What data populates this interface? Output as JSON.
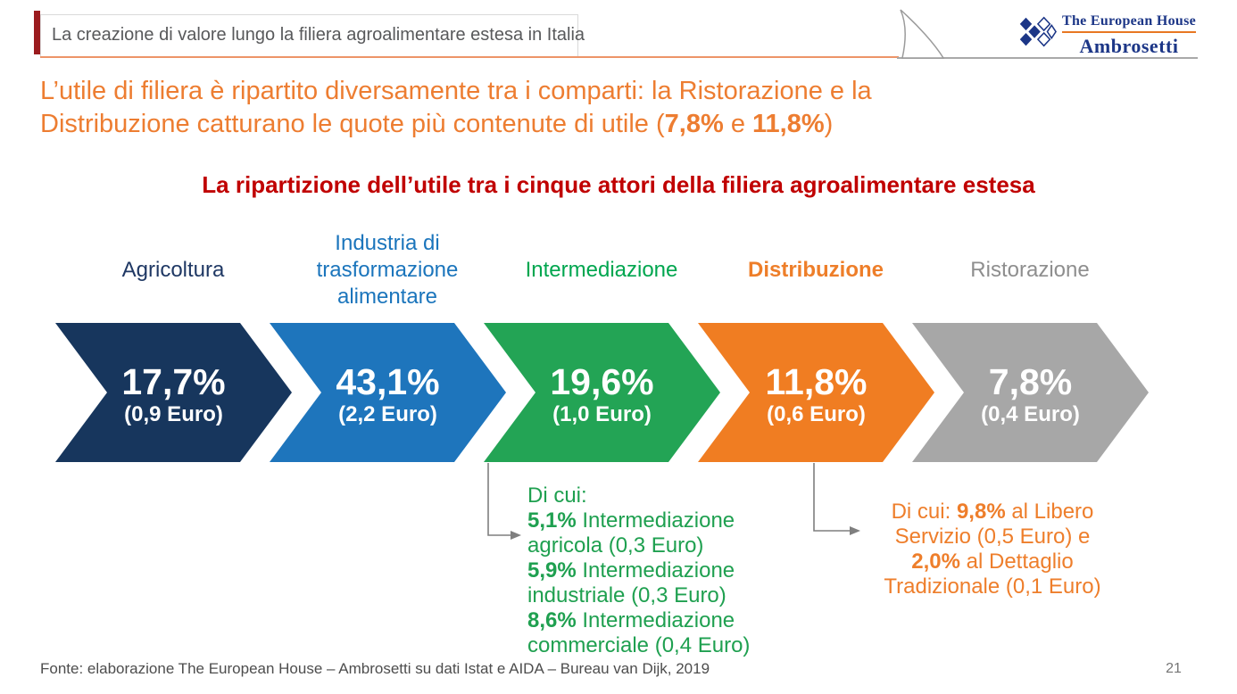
{
  "header": {
    "title": "La creazione di valore lungo la filiera agroalimentare estesa in Italia"
  },
  "logo": {
    "line1": "The European House",
    "line2": "Ambrosetti",
    "navy": "#1C3687",
    "orange": "#E87722"
  },
  "heading": {
    "color": "#ED7D31",
    "lines": [
      [
        {
          "t": "L’utile di filiera è ripartito diversamente tra i comparti: la Ristorazione e la"
        }
      ],
      [
        {
          "t": "Distribuzione catturano le quote più contenute di utile ("
        },
        {
          "t": "7,8%",
          "b": true
        },
        {
          "t": " e "
        },
        {
          "t": "11,8%",
          "b": true
        },
        {
          "t": ")"
        }
      ]
    ]
  },
  "subtitle": {
    "text": "La ripartizione dell’utile tra i cinque attori della filiera agroalimentare estesa",
    "color": "#C00000"
  },
  "arrows": [
    {
      "label": "Agricoltura",
      "label_color": "#1F3864",
      "label_weight": "400",
      "color": "#17365D",
      "pct": "17,7%",
      "euro": "(0,9 Euro)"
    },
    {
      "label": "Industria di trasformazione alimentare",
      "label_color": "#1B75BC",
      "label_weight": "400",
      "color": "#1E75BC",
      "pct": "43,1%",
      "euro": "(2,2 Euro)"
    },
    {
      "label": "Intermediazione",
      "label_color": "#00A64F",
      "label_weight": "400",
      "color": "#23A455",
      "pct": "19,6%",
      "euro": "(1,0 Euro)"
    },
    {
      "label": "Distribuzione",
      "label_color": "#EE7E29",
      "label_weight": "700",
      "color": "#F07D22",
      "pct": "11,8%",
      "euro": "(0,6 Euro)"
    },
    {
      "label": "Ristorazione",
      "label_color": "#8E8E8E",
      "label_weight": "400",
      "color": "#A7A7A7",
      "pct": "7,8%",
      "euro": "(0,4 Euro)"
    }
  ],
  "notes": {
    "green": {
      "color": "#1FA050",
      "lines": [
        [
          {
            "t": "Di cui:"
          }
        ],
        [
          {
            "t": "5,1%",
            "b": true
          },
          {
            "t": " Intermediazione"
          }
        ],
        [
          {
            "t": "agricola (0,3 Euro)"
          }
        ],
        [
          {
            "t": "5,9%",
            "b": true
          },
          {
            "t": " Intermediazione"
          }
        ],
        [
          {
            "t": "industriale (0,3 Euro)"
          }
        ],
        [
          {
            "t": "8,6%",
            "b": true
          },
          {
            "t": " Intermediazione"
          }
        ],
        [
          {
            "t": "commerciale (0,4 Euro)"
          }
        ]
      ]
    },
    "orange": {
      "color": "#EE7E2B",
      "lines": [
        [
          {
            "t": "Di cui: "
          },
          {
            "t": "9,8%",
            "b": true
          },
          {
            "t": " al Libero"
          }
        ],
        [
          {
            "t": "Servizio (0,5 Euro) e"
          }
        ],
        [
          {
            "t": "2,0%",
            "b": true
          },
          {
            "t": " al Dettaglio"
          }
        ],
        [
          {
            "t": "Tradizionale (0,1 Euro)"
          }
        ]
      ]
    }
  },
  "footer": {
    "source": "Fonte: elaborazione The European House – Ambrosetti su dati Istat e AIDA – Bureau van Dijk, 2019",
    "page_number": "21"
  }
}
